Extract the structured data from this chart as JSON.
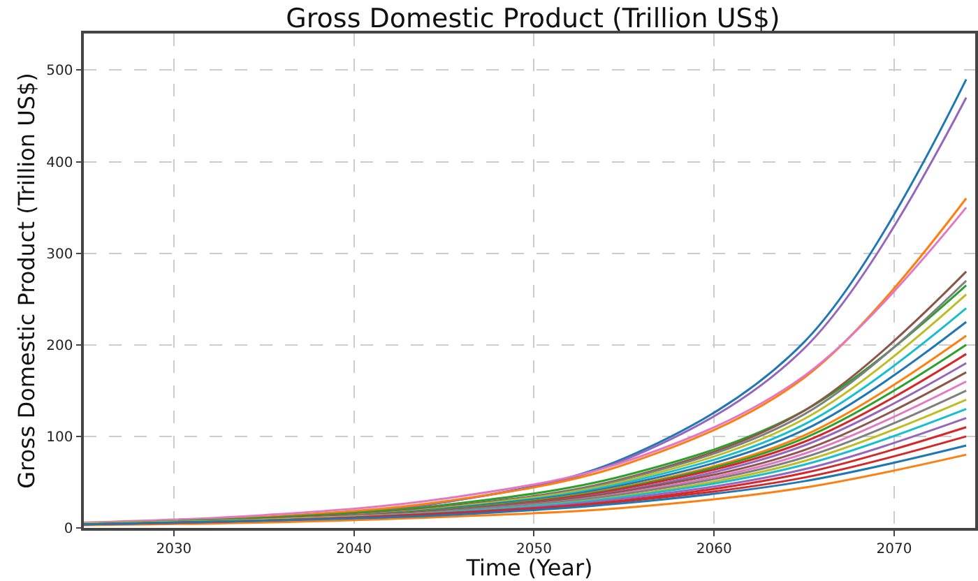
{
  "chart_data": {
    "type": "line",
    "title": "Gross Domestic Product (Trillion US$)",
    "xlabel": "Time (Year)",
    "ylabel": "Gross Domestic Product (Trillion US$)",
    "x": [
      2025,
      2035,
      2045,
      2055,
      2065,
      2074
    ],
    "xlim": [
      2025,
      2074.5
    ],
    "xticks": [
      2030,
      2040,
      2050,
      2060,
      2070
    ],
    "ylim": [
      0,
      540
    ],
    "yticks": [
      0,
      100,
      200,
      300,
      400,
      500
    ],
    "grid": true,
    "series": [
      {
        "color": "#1f77b4",
        "values": [
          4,
          11,
          28,
          76,
          203,
          490
        ]
      },
      {
        "color": "#9467bd",
        "values": [
          4,
          11,
          28,
          74,
          196,
          470
        ]
      },
      {
        "color": "#ff7f0e",
        "values": [
          5,
          12,
          29,
          69,
          164,
          360
        ]
      },
      {
        "color": "#e377c2",
        "values": [
          6,
          14,
          32,
          72,
          166,
          350
        ]
      },
      {
        "color": "#2ca02c",
        "values": [
          5,
          11,
          25,
          57,
          128,
          265
        ]
      },
      {
        "color": "#ff7f0e",
        "values": [
          3,
          6,
          12,
          22,
          44,
          80
        ]
      },
      {
        "color": "#8c564b",
        "values": [
          4,
          10,
          23,
          54,
          128,
          280
        ]
      },
      {
        "color": "#7f7f7f",
        "values": [
          4,
          9,
          22,
          53,
          124,
          270
        ]
      },
      {
        "color": "#bcbd22",
        "values": [
          4,
          9,
          22,
          51,
          119,
          255
        ]
      },
      {
        "color": "#17becf",
        "values": [
          4,
          9,
          21,
          49,
          113,
          240
        ]
      },
      {
        "color": "#1f77b4",
        "values": [
          4,
          9,
          21,
          47,
          107,
          225
        ]
      },
      {
        "color": "#ff7f0e",
        "values": [
          4,
          9,
          20,
          45,
          101,
          210
        ]
      },
      {
        "color": "#2ca02c",
        "values": [
          4,
          9,
          20,
          44,
          98,
          200
        ]
      },
      {
        "color": "#d62728",
        "values": [
          4,
          9,
          19,
          43,
          94,
          190
        ]
      },
      {
        "color": "#9467bd",
        "values": [
          4,
          9,
          19,
          41,
          90,
          180
        ]
      },
      {
        "color": "#8c564b",
        "values": [
          4,
          9,
          19,
          40,
          85,
          170
        ]
      },
      {
        "color": "#e377c2",
        "values": [
          4,
          9,
          18,
          38,
          81,
          160
        ]
      },
      {
        "color": "#7f7f7f",
        "values": [
          4,
          8,
          18,
          37,
          77,
          150
        ]
      },
      {
        "color": "#bcbd22",
        "values": [
          5,
          9,
          17,
          35,
          73,
          140
        ]
      },
      {
        "color": "#17becf",
        "values": [
          4,
          8,
          17,
          34,
          69,
          130
        ]
      },
      {
        "color": "#9467bd",
        "values": [
          4,
          8,
          16,
          32,
          64,
          120
        ]
      },
      {
        "color": "#d62728",
        "values": [
          4,
          8,
          16,
          30,
          60,
          110
        ]
      },
      {
        "color": "#d62728",
        "values": [
          4,
          8,
          15,
          29,
          55,
          100
        ]
      },
      {
        "color": "#1f77b4",
        "values": [
          4,
          8,
          14,
          27,
          51,
          90
        ]
      }
    ]
  }
}
